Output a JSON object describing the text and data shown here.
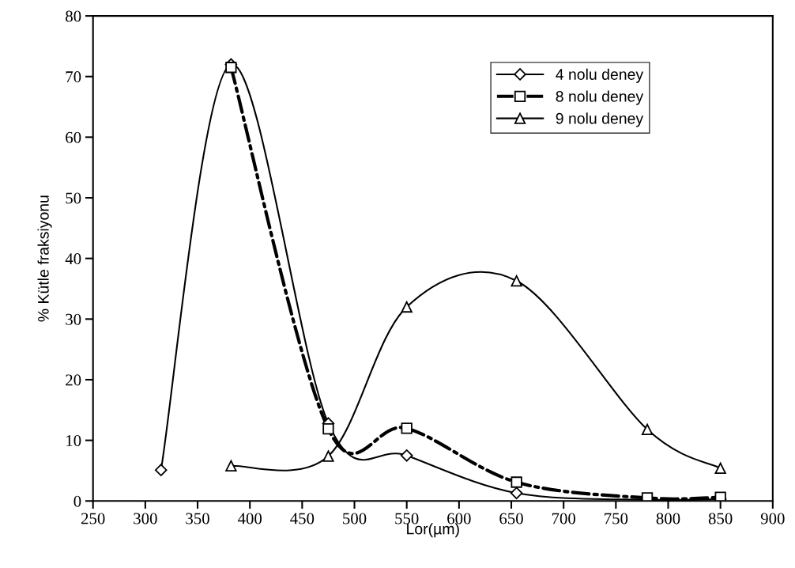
{
  "chart_data": {
    "type": "line",
    "xlabel": "Lor(µm)",
    "ylabel": "% Kütle fraksiyonu",
    "xlim": [
      250,
      900
    ],
    "xticks": [
      250,
      300,
      350,
      400,
      450,
      500,
      550,
      600,
      650,
      700,
      750,
      800,
      850,
      900
    ],
    "ylim": [
      0,
      80
    ],
    "yticks": [
      0,
      10,
      20,
      30,
      40,
      50,
      60,
      70,
      80
    ],
    "grid": false,
    "legend": "top right",
    "series": [
      {
        "name": "4 nolu deney",
        "color": "#000000",
        "marker": "diamond",
        "line_style": "solid",
        "x": [
          315,
          382,
          475,
          550,
          655,
          780,
          850
        ],
        "values": [
          5.1,
          72.0,
          12.8,
          7.5,
          1.3,
          0.2,
          0.3
        ]
      },
      {
        "name": "8 nolu deney",
        "color": "#000000",
        "marker": "square",
        "line_style": "dashed",
        "x": [
          382,
          475,
          550,
          655,
          780,
          850
        ],
        "values": [
          71.5,
          11.9,
          12.0,
          3.1,
          0.5,
          0.6
        ]
      },
      {
        "name": "9 nolu deney",
        "color": "#000000",
        "marker": "triangle",
        "line_style": "solid",
        "x": [
          382,
          475,
          550,
          655,
          780,
          850
        ],
        "values": [
          5.8,
          7.4,
          32.0,
          36.3,
          11.8,
          5.4
        ]
      }
    ]
  }
}
